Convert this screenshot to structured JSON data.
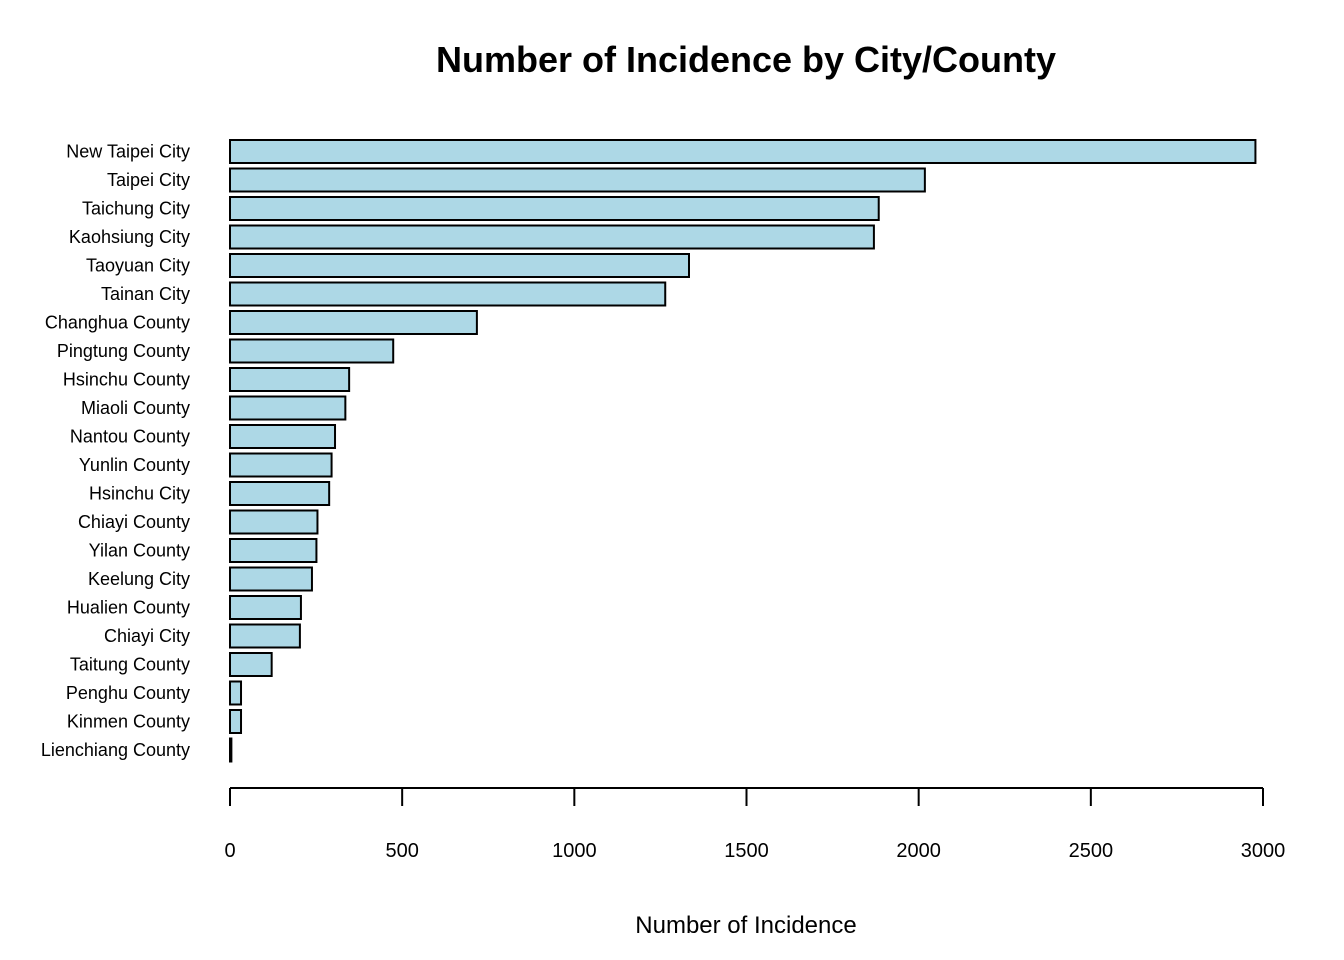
{
  "chart_data": {
    "type": "bar",
    "orientation": "horizontal",
    "title": "Number of Incidence by City/County",
    "xlabel": "Number of Incidence",
    "ylabel": "",
    "xlim": [
      0,
      3000
    ],
    "xticks": [
      0,
      500,
      1000,
      1500,
      2000,
      2500,
      3000
    ],
    "grid": false,
    "legend": "none",
    "bar_fill": "#ADD8E6",
    "bar_stroke": "#000000",
    "categories": [
      "New Taipei City",
      "Taipei City",
      "Taichung City",
      "Kaohsiung City",
      "Taoyuan City",
      "Tainan City",
      "Changhua County",
      "Pingtung County",
      "Hsinchu County",
      "Miaoli County",
      "Nantou County",
      "Yunlin County",
      "Hsinchu City",
      "Chiayi County",
      "Yilan County",
      "Keelung City",
      "Hualien County",
      "Chiayi City",
      "Taitung County",
      "Penghu County",
      "Kinmen County",
      "Lienchiang County"
    ],
    "values": [
      2978,
      2018,
      1884,
      1870,
      1333,
      1264,
      717,
      474,
      346,
      335,
      305,
      295,
      288,
      254,
      251,
      238,
      206,
      203,
      121,
      32,
      32,
      4
    ]
  }
}
